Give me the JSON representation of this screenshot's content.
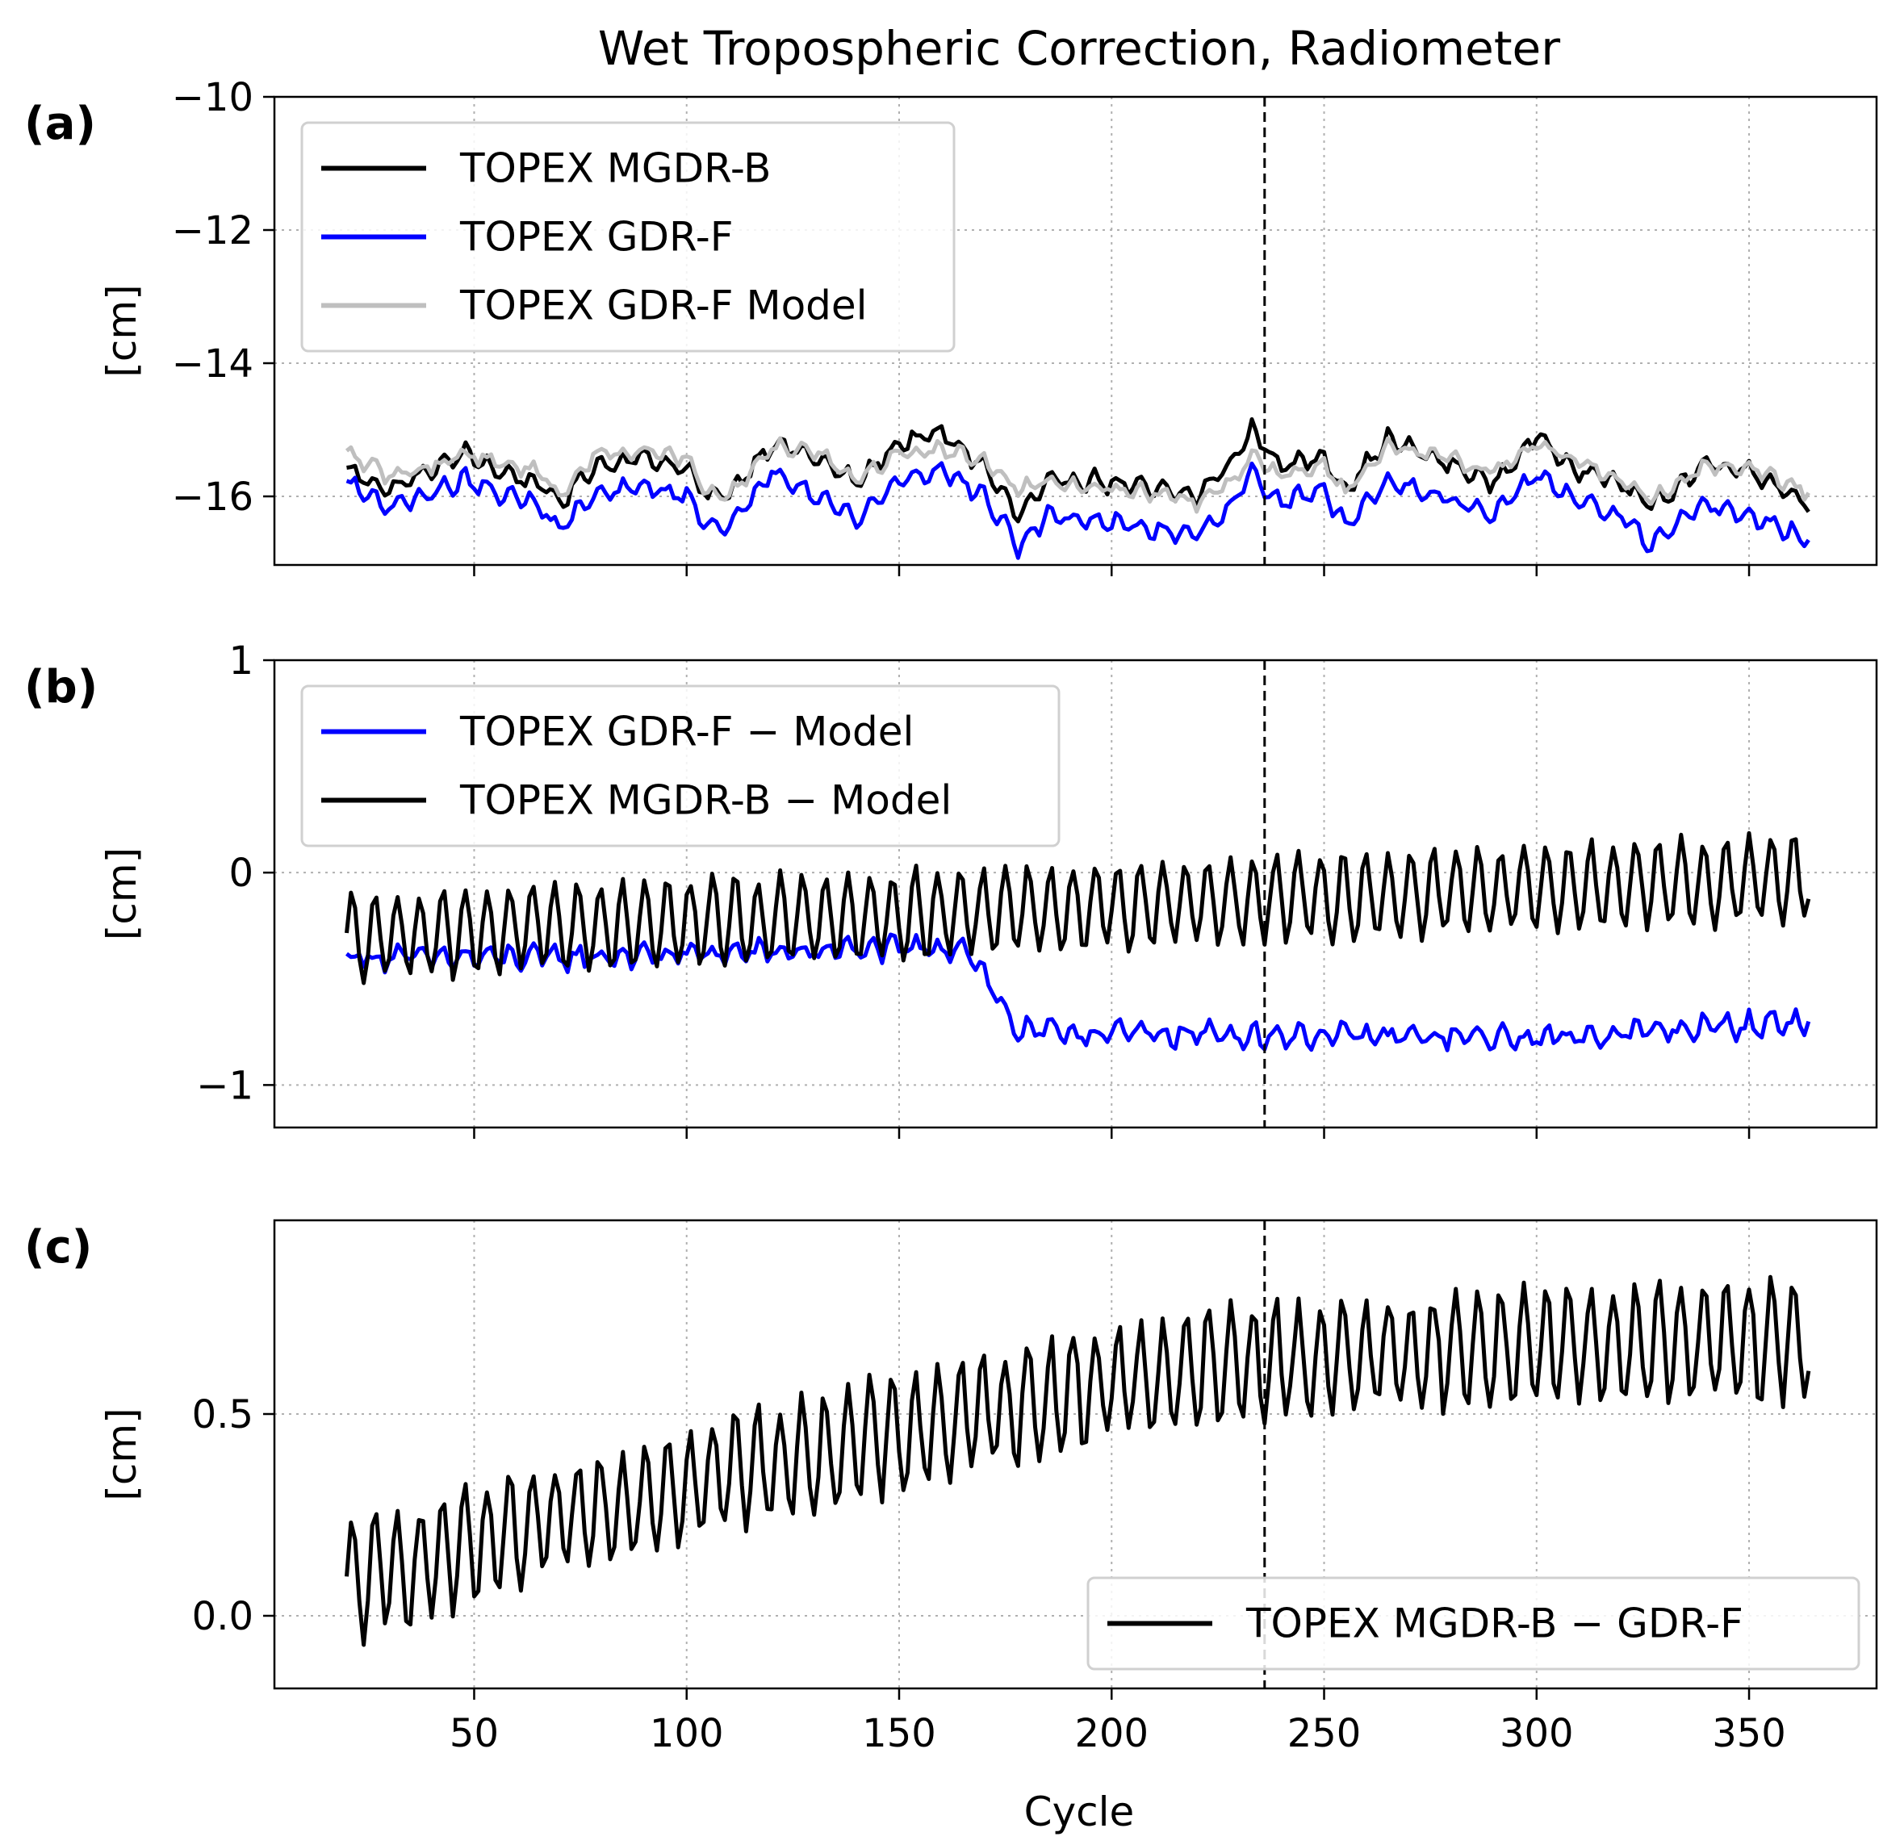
{
  "chart_data": {
    "title": "Wet Tropospheric Correction, Radiometer",
    "xlabel": "Cycle",
    "xlim": [
      3,
      380
    ],
    "xticks": [
      50,
      100,
      150,
      200,
      250,
      300,
      350
    ],
    "vline_x": 236,
    "grid": true,
    "panels": [
      {
        "label": "(a)",
        "type": "line",
        "ylabel": "[cm]",
        "ylim": [
          -17.03,
          -10
        ],
        "yticks": [
          -10,
          -12,
          -14,
          -16
        ],
        "ytick_labels": [
          "−10",
          "−12",
          "−14",
          "−16"
        ],
        "legend": "top-left",
        "series": [
          {
            "name": "TOPEX MGDR-B",
            "color": "#000000",
            "x_start": 20,
            "x_end": 364,
            "base": -15.75,
            "drift": 0.0,
            "noise": 0.07,
            "amplitude": 0.12,
            "period": 5.3,
            "anchors": [
              [
                20,
                -15.6
              ],
              [
                30,
                -15.9
              ],
              [
                40,
                -15.6
              ],
              [
                48,
                -15.35
              ],
              [
                55,
                -15.6
              ],
              [
                65,
                -15.8
              ],
              [
                70,
                -16.1
              ],
              [
                78,
                -15.55
              ],
              [
                90,
                -15.4
              ],
              [
                100,
                -15.6
              ],
              [
                105,
                -16.0
              ],
              [
                110,
                -15.95
              ],
              [
                120,
                -15.2
              ],
              [
                130,
                -15.4
              ],
              [
                140,
                -15.8
              ],
              [
                150,
                -15.2
              ],
              [
                160,
                -15.05
              ],
              [
                170,
                -15.55
              ],
              [
                178,
                -16.3
              ],
              [
                185,
                -15.8
              ],
              [
                195,
                -15.75
              ],
              [
                210,
                -15.9
              ],
              [
                220,
                -16.0
              ],
              [
                228,
                -15.5
              ],
              [
                233,
                -15.0
              ],
              [
                240,
                -15.55
              ],
              [
                250,
                -15.4
              ],
              [
                255,
                -15.9
              ],
              [
                265,
                -15.15
              ],
              [
                275,
                -15.4
              ],
              [
                290,
                -15.8
              ],
              [
                300,
                -15.1
              ],
              [
                310,
                -15.6
              ],
              [
                320,
                -15.8
              ],
              [
                327,
                -16.15
              ],
              [
                340,
                -15.5
              ],
              [
                350,
                -15.6
              ],
              [
                364,
                -16.1
              ]
            ]
          },
          {
            "name": "TOPEX GDR-F",
            "color": "#0000ff",
            "x_start": 20,
            "x_end": 364,
            "base": -16.2,
            "drift": 0.0,
            "noise": 0.07,
            "amplitude": 0.12,
            "period": 5.3,
            "anchors": [
              [
                20,
                -15.8
              ],
              [
                30,
                -16.15
              ],
              [
                40,
                -15.95
              ],
              [
                48,
                -15.75
              ],
              [
                55,
                -15.95
              ],
              [
                65,
                -16.1
              ],
              [
                70,
                -16.5
              ],
              [
                78,
                -16.0
              ],
              [
                90,
                -15.85
              ],
              [
                100,
                -16.0
              ],
              [
                105,
                -16.4
              ],
              [
                110,
                -16.5
              ],
              [
                120,
                -15.6
              ],
              [
                130,
                -15.95
              ],
              [
                140,
                -16.35
              ],
              [
                150,
                -15.75
              ],
              [
                160,
                -15.6
              ],
              [
                170,
                -16.0
              ],
              [
                178,
                -16.75
              ],
              [
                185,
                -16.3
              ],
              [
                195,
                -16.35
              ],
              [
                210,
                -16.5
              ],
              [
                220,
                -16.55
              ],
              [
                228,
                -16.15
              ],
              [
                233,
                -15.65
              ],
              [
                240,
                -16.1
              ],
              [
                250,
                -15.9
              ],
              [
                255,
                -16.45
              ],
              [
                265,
                -15.75
              ],
              [
                275,
                -15.95
              ],
              [
                290,
                -16.3
              ],
              [
                300,
                -15.65
              ],
              [
                310,
                -16.1
              ],
              [
                320,
                -16.3
              ],
              [
                327,
                -16.75
              ],
              [
                340,
                -16.1
              ],
              [
                350,
                -16.3
              ],
              [
                364,
                -16.65
              ]
            ]
          },
          {
            "name": "TOPEX GDR-F Model",
            "color": "#bfbfbf",
            "x_start": 20,
            "x_end": 364,
            "base": -15.65,
            "drift": 0.0,
            "noise": 0.07,
            "amplitude": 0.08,
            "period": 5.3,
            "anchors": [
              [
                20,
                -15.35
              ],
              [
                30,
                -15.7
              ],
              [
                40,
                -15.55
              ],
              [
                48,
                -15.35
              ],
              [
                55,
                -15.5
              ],
              [
                65,
                -15.6
              ],
              [
                70,
                -16.0
              ],
              [
                78,
                -15.4
              ],
              [
                90,
                -15.3
              ],
              [
                100,
                -15.45
              ],
              [
                105,
                -15.95
              ],
              [
                110,
                -16.0
              ],
              [
                120,
                -15.25
              ],
              [
                130,
                -15.3
              ],
              [
                140,
                -15.75
              ],
              [
                150,
                -15.35
              ],
              [
                160,
                -15.3
              ],
              [
                170,
                -15.45
              ],
              [
                178,
                -15.9
              ],
              [
                185,
                -15.75
              ],
              [
                195,
                -15.85
              ],
              [
                210,
                -15.95
              ],
              [
                220,
                -16.1
              ],
              [
                228,
                -15.8
              ],
              [
                233,
                -15.4
              ],
              [
                240,
                -15.7
              ],
              [
                250,
                -15.5
              ],
              [
                255,
                -15.95
              ],
              [
                265,
                -15.25
              ],
              [
                275,
                -15.35
              ],
              [
                290,
                -15.65
              ],
              [
                300,
                -15.2
              ],
              [
                310,
                -15.5
              ],
              [
                320,
                -15.75
              ],
              [
                327,
                -16.05
              ],
              [
                340,
                -15.55
              ],
              [
                350,
                -15.55
              ],
              [
                364,
                -15.95
              ]
            ]
          }
        ]
      },
      {
        "label": "(b)",
        "type": "line",
        "ylabel": "[cm]",
        "ylim": [
          -1.2,
          1.0
        ],
        "yticks": [
          1,
          0,
          -1
        ],
        "ytick_labels": [
          "1",
          "0",
          "−1"
        ],
        "legend": "top-left",
        "series": [
          {
            "name": "TOPEX GDR-F − Model",
            "color": "#0000ff",
            "x_start": 20,
            "x_end": 364,
            "base": -0.4,
            "drift": -0.00105,
            "noise": 0.035,
            "amplitude": 0.04,
            "period": 5.3,
            "anchors": [
              [
                20,
                -0.4
              ],
              [
                70,
                -0.4
              ],
              [
                166,
                -0.35
              ],
              [
                178,
                -0.75
              ],
              [
                300,
                -0.78
              ],
              [
                364,
                -0.7
              ]
            ]
          },
          {
            "name": "TOPEX MGDR-B − Model",
            "color": "#000000",
            "x_start": 20,
            "x_end": 364,
            "base": -0.3,
            "drift": 0.0008,
            "noise": 0.03,
            "amplitude": 0.2,
            "period": 5.3,
            "anchors": []
          }
        ]
      },
      {
        "label": "(c)",
        "type": "line",
        "ylabel": "[cm]",
        "ylim": [
          -0.18,
          0.98
        ],
        "yticks": [
          0.5,
          0.0
        ],
        "ytick_labels": [
          "0.5",
          "0.0"
        ],
        "legend": "bottom-right",
        "series": [
          {
            "name": "TOPEX MGDR-B − GDR-F",
            "color": "#000000",
            "x_start": 20,
            "x_end": 364,
            "base": 0.1,
            "drift": 0.0,
            "noise": 0.03,
            "amplitude": 0.14,
            "period": 5.3,
            "anchors": [
              [
                20,
                0.08
              ],
              [
                60,
                0.2
              ],
              [
                100,
                0.33
              ],
              [
                150,
                0.45
              ],
              [
                200,
                0.58
              ],
              [
                236,
                0.63
              ],
              [
                300,
                0.67
              ],
              [
                364,
                0.68
              ]
            ]
          }
        ]
      }
    ]
  }
}
